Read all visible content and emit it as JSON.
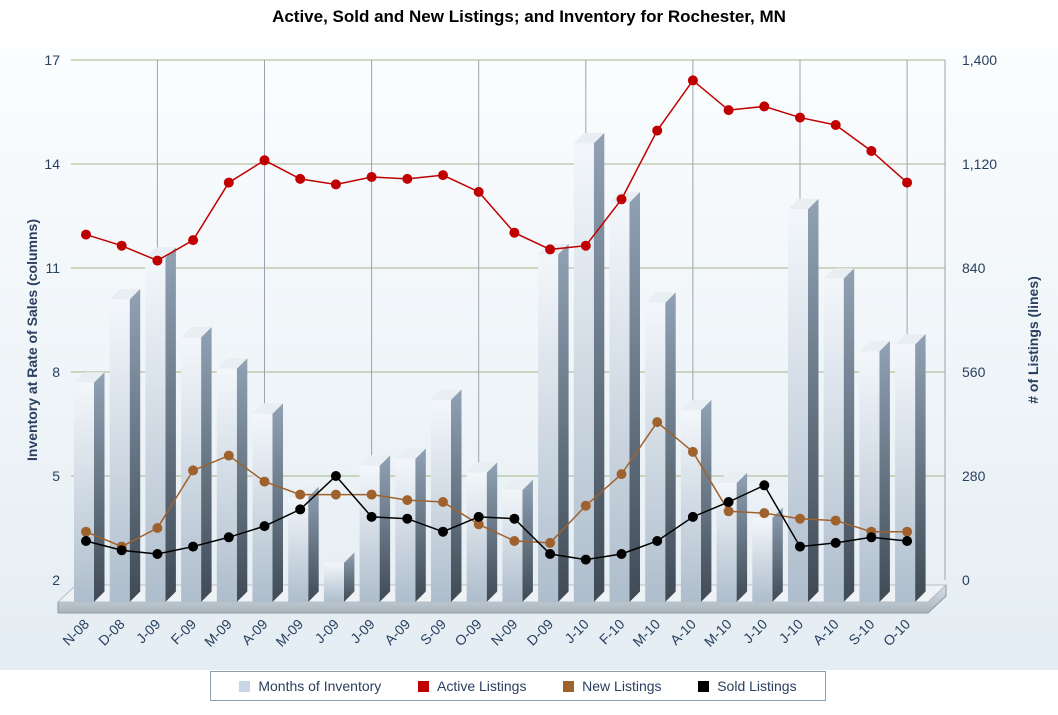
{
  "title": "Active, Sold and New Listings; and Inventory for Rochester, MN",
  "chart_data": {
    "type": "bar",
    "title": "Active, Sold and New Listings; and Inventory for Rochester, MN",
    "categories": [
      "N-08",
      "D-08",
      "J-09",
      "F-09",
      "M-09",
      "A-09",
      "M-09",
      "J-09",
      "J-09",
      "A-09",
      "S-09",
      "O-09",
      "N-09",
      "D-09",
      "J-10",
      "F-10",
      "M-10",
      "A-10",
      "M-10",
      "J-10",
      "J-10",
      "A-10",
      "S-10",
      "O-10"
    ],
    "ylabel_left": "Inventory at Rate of Sales (columns)",
    "ylabel_right": "# of Listings (lines)",
    "ylim_left": [
      2,
      17
    ],
    "ylim_right": [
      0,
      1400
    ],
    "yticks_left": [
      "2",
      "5",
      "8",
      "11",
      "14",
      "17"
    ],
    "yticks_right": [
      "0",
      "280",
      "560",
      "840",
      "1,120",
      "1,400"
    ],
    "grid": true,
    "legend_position": "bottom",
    "series": [
      {
        "name": "Months of Inventory",
        "type": "bar",
        "axis": "left",
        "color": "#c8d6e6",
        "values": [
          8.3,
          10.7,
          11.9,
          9.6,
          8.7,
          7.4,
          5.0,
          3.1,
          5.9,
          6.1,
          7.8,
          5.7,
          5.2,
          12.0,
          15.2,
          13.5,
          10.6,
          7.5,
          5.4,
          4.4,
          13.3,
          11.3,
          9.2,
          9.4
        ]
      },
      {
        "name": "Active Listings",
        "type": "line",
        "axis": "right",
        "color": "#c00000",
        "values": [
          930,
          900,
          860,
          915,
          1070,
          1130,
          1080,
          1065,
          1085,
          1080,
          1090,
          1045,
          935,
          890,
          900,
          1025,
          1210,
          1345,
          1265,
          1275,
          1245,
          1225,
          1155,
          1070
        ]
      },
      {
        "name": "New Listings",
        "type": "line",
        "axis": "right",
        "color": "#a0622d",
        "values": [
          130,
          90,
          140,
          295,
          335,
          265,
          230,
          230,
          230,
          215,
          210,
          150,
          105,
          100,
          200,
          285,
          425,
          345,
          185,
          180,
          165,
          160,
          130,
          130
        ]
      },
      {
        "name": "Sold Listings",
        "type": "line",
        "axis": "right",
        "color": "#000000",
        "values": [
          105,
          80,
          70,
          90,
          115,
          145,
          190,
          280,
          170,
          165,
          130,
          170,
          165,
          70,
          55,
          70,
          105,
          170,
          210,
          255,
          90,
          100,
          115,
          105
        ]
      }
    ]
  }
}
